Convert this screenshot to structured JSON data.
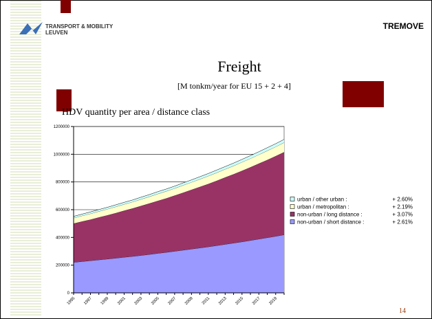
{
  "header": {
    "logo_line1": "TRANSPORT & MOBILITY",
    "logo_line2": "LEUVEN",
    "brand": "TREMOVE"
  },
  "slide": {
    "title": "Freight",
    "subtitle": "[M tonkm/year  for EU 15 + 2 + 4]",
    "heading": "HDV quantity per area / distance class",
    "page_number": "14"
  },
  "chart_data": {
    "type": "stacked_area",
    "categories": [
      "1995",
      null,
      "1997",
      null,
      "1999",
      null,
      "2001",
      null,
      "2003",
      null,
      "2005",
      null,
      "2007",
      null,
      "2009",
      null,
      "2011",
      null,
      "2013",
      null,
      "2015",
      null,
      "2017",
      null,
      "2019",
      null
    ],
    "series": [
      {
        "name": "non-urban / short distance :",
        "growth": "+ 2.61%",
        "color": "#9999ff",
        "values": [
          220000,
          226000,
          232000,
          238000,
          244000,
          250000,
          257000,
          263000,
          270000,
          277000,
          285000,
          292000,
          300000,
          308000,
          316000,
          324000,
          332000,
          341000,
          350000,
          359000,
          368000,
          378000,
          388000,
          398000,
          408000,
          419000
        ]
      },
      {
        "name": "non-urban / long distance :",
        "growth": "+ 3.07%",
        "color": "#993366",
        "values": [
          280000,
          289000,
          297000,
          307000,
          316000,
          326000,
          336000,
          346000,
          357000,
          368000,
          379000,
          390000,
          402000,
          415000,
          428000,
          441000,
          454000,
          468000,
          483000,
          497000,
          513000,
          528000,
          545000,
          561000,
          579000,
          596000
        ]
      },
      {
        "name": "urban / metropolitan :",
        "growth": "+ 2.19%",
        "color": "#ffffcc",
        "values": [
          40000,
          41000,
          42000,
          43000,
          44000,
          45000,
          46000,
          47000,
          48000,
          49000,
          50000,
          51000,
          52000,
          53000,
          54000,
          55000,
          57000,
          58000,
          59000,
          60000,
          62000,
          63000,
          64000,
          66000,
          67000,
          69000
        ]
      },
      {
        "name": "urban / other urban :",
        "growth": "+ 2.60%",
        "color": "#ccffff",
        "values": [
          12000,
          12000,
          13000,
          13000,
          13000,
          14000,
          14000,
          14000,
          15000,
          15000,
          16000,
          16000,
          16000,
          17000,
          17000,
          18000,
          18000,
          19000,
          19000,
          20000,
          20000,
          21000,
          21000,
          22000,
          22000,
          23000
        ]
      }
    ],
    "ylim": [
      0,
      1200000
    ],
    "yticks": [
      0,
      200000,
      400000,
      600000,
      800000,
      1000000,
      1200000
    ],
    "grid": true
  }
}
